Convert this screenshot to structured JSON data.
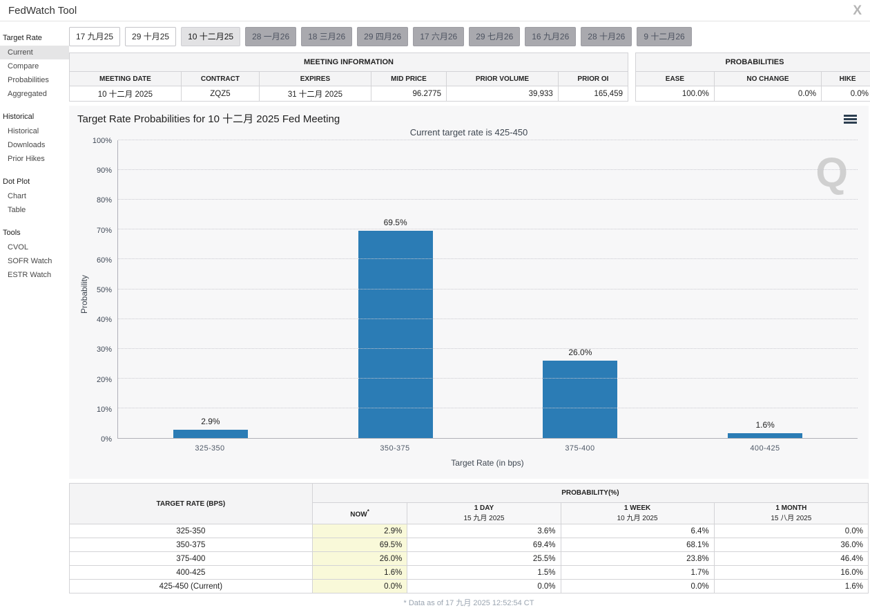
{
  "window": {
    "title": "FedWatch Tool",
    "close_label": "X"
  },
  "sidebar": {
    "selected": "Current",
    "sections": [
      {
        "header": "Target Rate",
        "items": [
          "Current",
          "Compare",
          "Probabilities",
          "Aggregated"
        ]
      },
      {
        "header": "Historical",
        "items": [
          "Historical",
          "Downloads",
          "Prior Hikes"
        ]
      },
      {
        "header": "Dot Plot",
        "items": [
          "Chart",
          "Table"
        ]
      },
      {
        "header": "Tools",
        "items": [
          "CVOL",
          "SOFR Watch",
          "ESTR Watch"
        ]
      }
    ]
  },
  "tabs": [
    {
      "label": "17 九月25",
      "state": "open"
    },
    {
      "label": "29 十月25",
      "state": "open"
    },
    {
      "label": "10 十二月25",
      "state": "selected"
    },
    {
      "label": "28 一月26",
      "state": "future"
    },
    {
      "label": "18 三月26",
      "state": "future"
    },
    {
      "label": "29 四月26",
      "state": "future"
    },
    {
      "label": "17 六月26",
      "state": "future"
    },
    {
      "label": "29 七月26",
      "state": "future"
    },
    {
      "label": "16 九月26",
      "state": "future"
    },
    {
      "label": "28 十月26",
      "state": "future"
    },
    {
      "label": "9 十二月26",
      "state": "future"
    }
  ],
  "meeting_info": {
    "title": "MEETING INFORMATION",
    "columns": [
      "MEETING DATE",
      "CONTRACT",
      "EXPIRES",
      "MID PRICE",
      "PRIOR VOLUME",
      "PRIOR OI"
    ],
    "values": [
      "10 十二月 2025",
      "ZQZ5",
      "31 十二月 2025",
      "96.2775",
      "39,933",
      "165,459"
    ]
  },
  "probabilities_summary": {
    "title": "PROBABILITIES",
    "columns": [
      "EASE",
      "NO CHANGE",
      "HIKE"
    ],
    "values": [
      "100.0%",
      "0.0%",
      "0.0%"
    ]
  },
  "chart_data": {
    "type": "bar",
    "title": "Target Rate Probabilities for 10 十二月 2025 Fed Meeting",
    "subtitle": "Current target rate is 425-450",
    "categories": [
      "325-350",
      "350-375",
      "375-400",
      "400-425"
    ],
    "values": [
      2.9,
      69.5,
      26.0,
      1.6
    ],
    "value_labels": [
      "2.9%",
      "69.5%",
      "26.0%",
      "1.6%"
    ],
    "xlabel": "Target Rate (in bps)",
    "ylabel": "Probability",
    "ylim": [
      0,
      100
    ],
    "ytick_labels": [
      "0%",
      "10%",
      "20%",
      "30%",
      "40%",
      "50%",
      "60%",
      "70%",
      "80%",
      "90%",
      "100%"
    ],
    "bar_color": "#2b7cb5",
    "grid": "dotted horizontal",
    "legend": "none",
    "watermark": "Q"
  },
  "bottom_table": {
    "col1_header": "TARGET RATE (BPS)",
    "group_header": "PROBABILITY(%)",
    "sub_headers": [
      {
        "line1": "NOW",
        "sup": "*",
        "line2": ""
      },
      {
        "line1": "1 DAY",
        "line2": "15 九月 2025"
      },
      {
        "line1": "1 WEEK",
        "line2": "10 九月 2025"
      },
      {
        "line1": "1 MONTH",
        "line2": "15 八月 2025"
      }
    ],
    "rows": [
      {
        "rate": "325-350",
        "now": "2.9%",
        "day": "3.6%",
        "week": "6.4%",
        "month": "0.0%"
      },
      {
        "rate": "350-375",
        "now": "69.5%",
        "day": "69.4%",
        "week": "68.1%",
        "month": "36.0%"
      },
      {
        "rate": "375-400",
        "now": "26.0%",
        "day": "25.5%",
        "week": "23.8%",
        "month": "46.4%"
      },
      {
        "rate": "400-425",
        "now": "1.6%",
        "day": "1.5%",
        "week": "1.7%",
        "month": "16.0%"
      },
      {
        "rate": "425-450 (Current)",
        "now": "0.0%",
        "day": "0.0%",
        "week": "0.0%",
        "month": "1.6%"
      }
    ],
    "footnote": "* Data as of 17 九月 2025 12:52:54 CT"
  }
}
